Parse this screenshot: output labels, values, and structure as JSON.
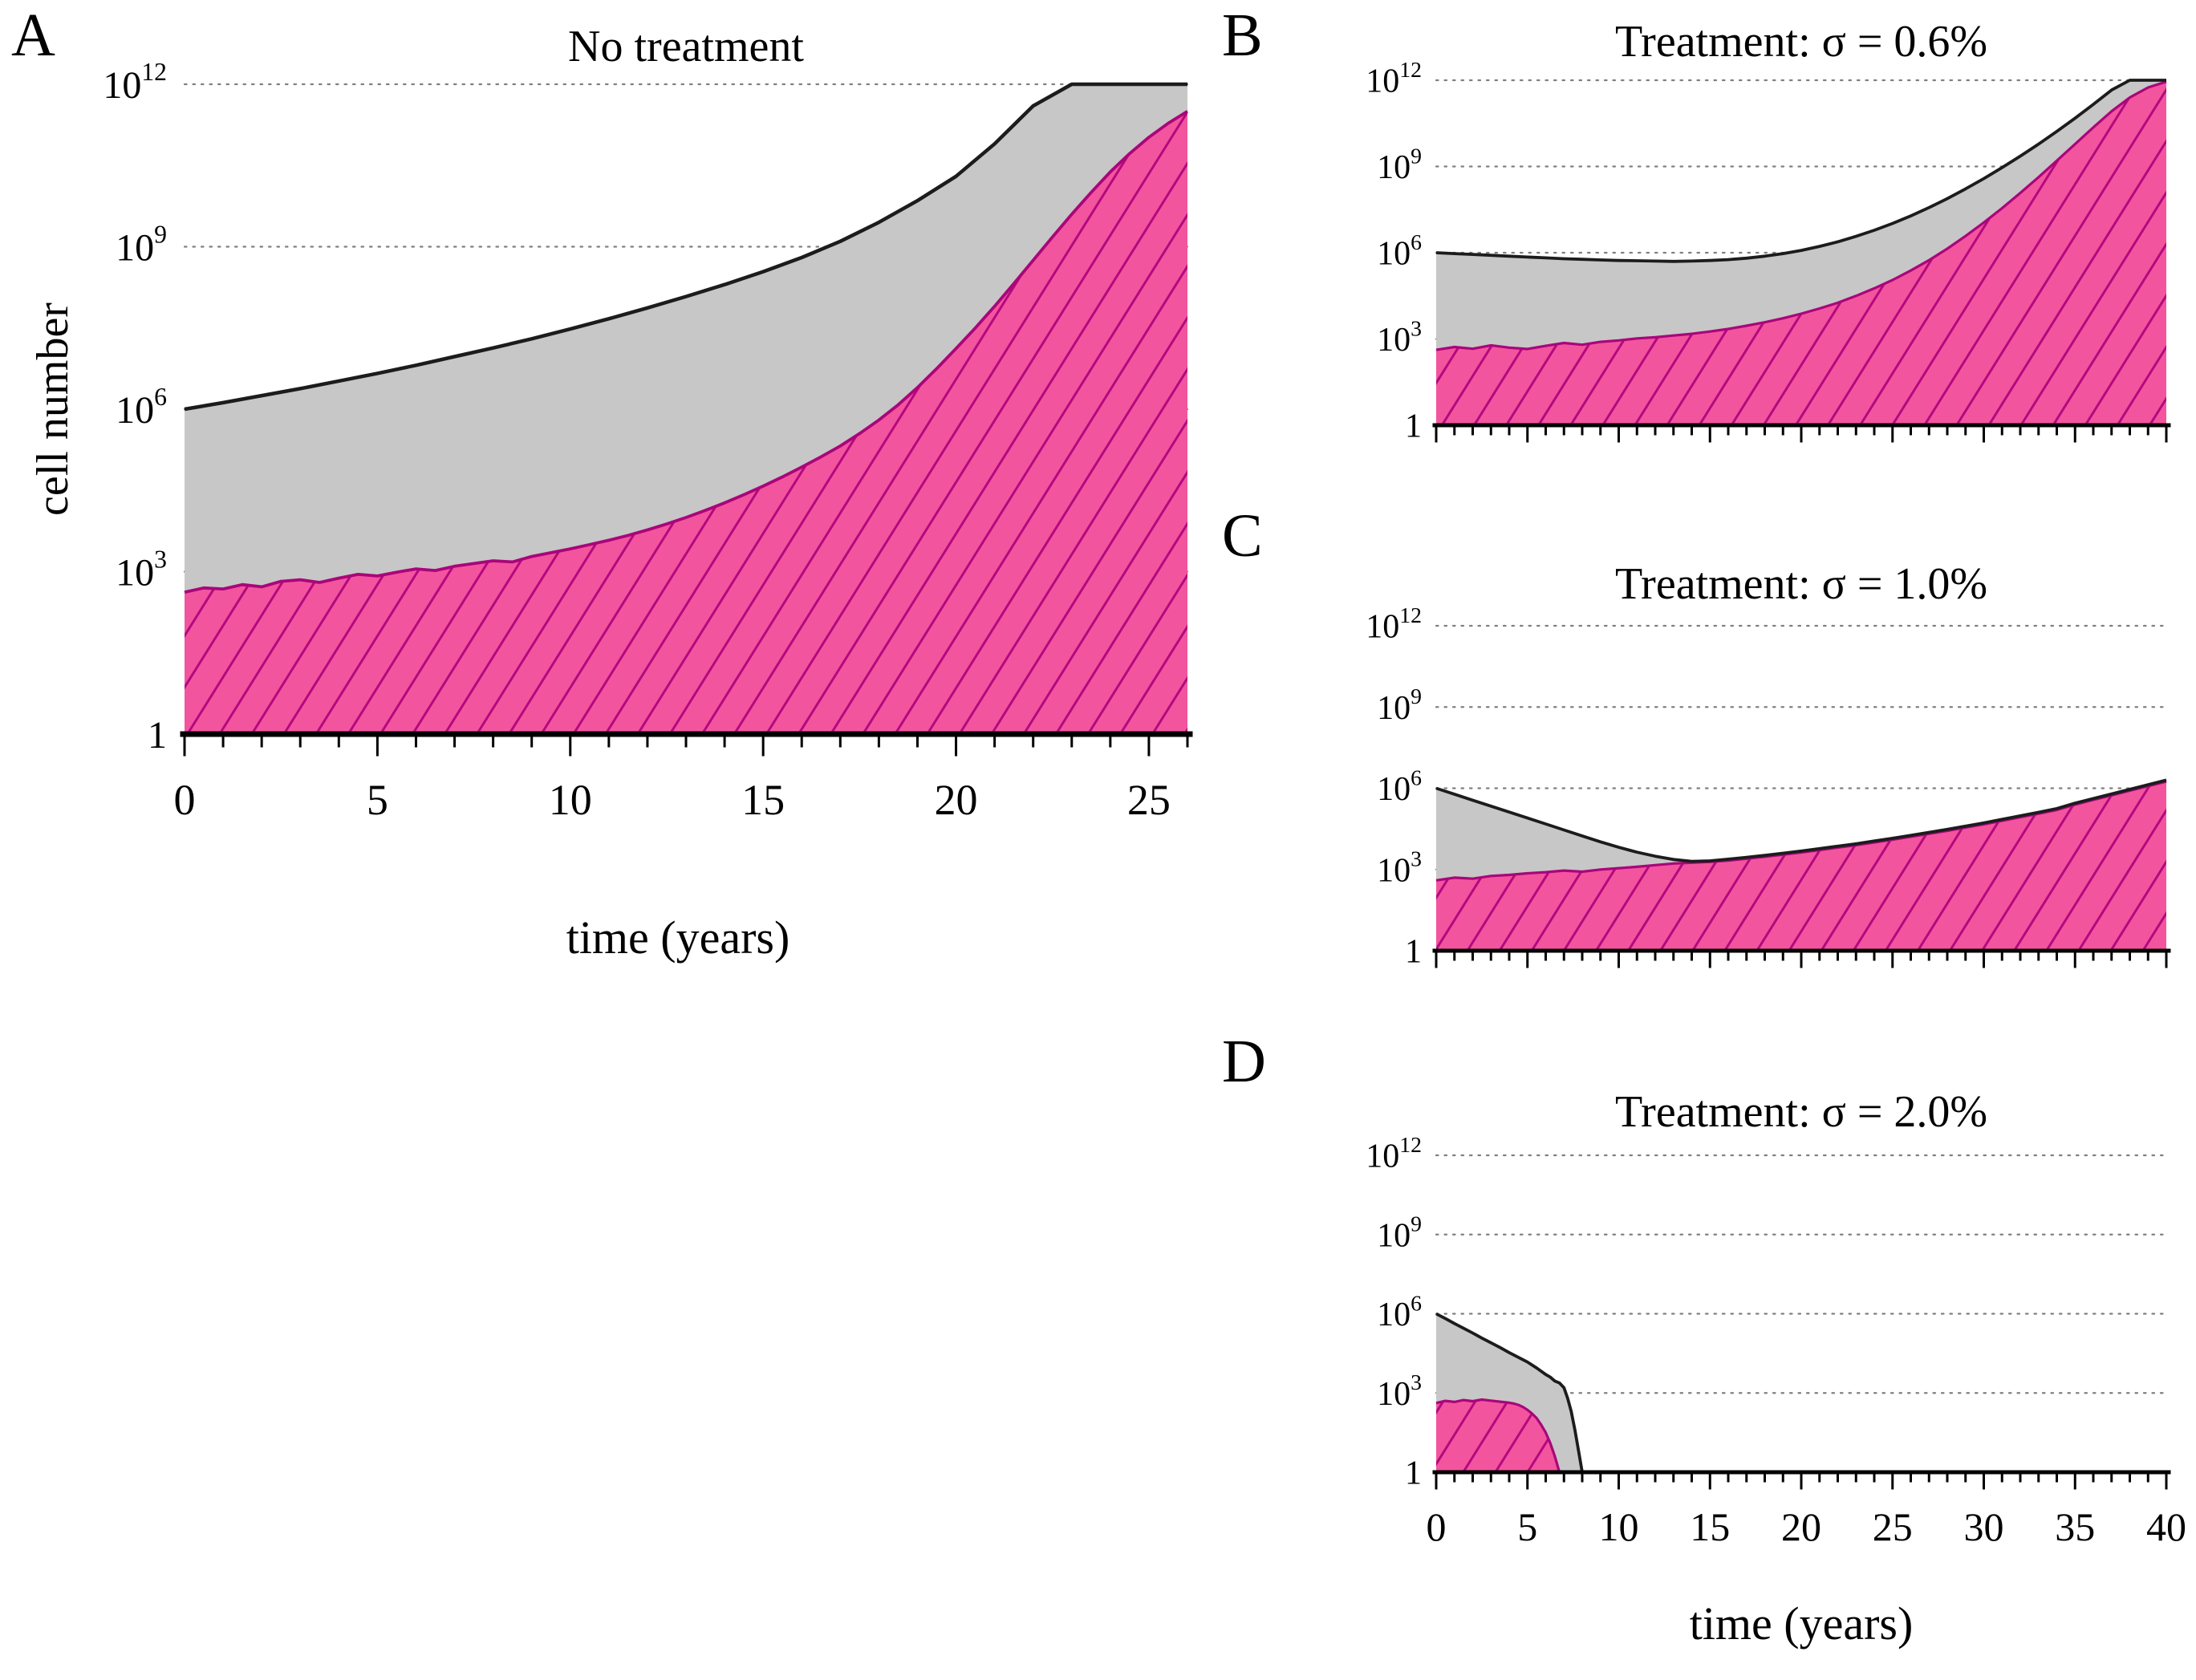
{
  "figure": {
    "panel_labels": [
      "A",
      "B",
      "C",
      "D"
    ]
  },
  "colors": {
    "total_fill": "#c7c7c7",
    "total_stroke": "#1c1c1c",
    "resistant_fill": "#f2559e",
    "resistant_hatch": "#b5087f",
    "resistant_stroke": "#a9067a",
    "grid": "#808080",
    "axis": "#000000"
  },
  "chart_data": [
    {
      "panel": "A",
      "type": "area",
      "title": "No treatment",
      "xlabel": "time (years)",
      "ylabel": "cell number",
      "y_scale": "log10",
      "y_ticks_exp": [
        0,
        3,
        6,
        9,
        12
      ],
      "x_range": [
        0,
        26
      ],
      "x_ticks_major": [
        0,
        5,
        10,
        15,
        20,
        25
      ],
      "x_tick_labels_shown": true,
      "series": [
        {
          "name": "total cells (gray area, black line)",
          "style": "gray-area",
          "x_start": 0,
          "x_step": 1,
          "log10_y": [
            6.0,
            6.12,
            6.25,
            6.38,
            6.52,
            6.66,
            6.81,
            6.97,
            7.13,
            7.3,
            7.48,
            7.67,
            7.87,
            8.08,
            8.3,
            8.54,
            8.8,
            9.1,
            9.45,
            9.85,
            10.3,
            10.9,
            11.6,
            12,
            12,
            12,
            12
          ]
        },
        {
          "name": "resistant cells (pink hatched area, magenta line)",
          "style": "pink-hatched-area",
          "x_start": 0,
          "x_step": 0.5,
          "log10_y": [
            2.62,
            2.7,
            2.68,
            2.76,
            2.72,
            2.82,
            2.85,
            2.8,
            2.88,
            2.95,
            2.92,
            2.99,
            3.05,
            3.02,
            3.1,
            3.15,
            3.2,
            3.18,
            3.28,
            3.35,
            3.42,
            3.5,
            3.58,
            3.67,
            3.77,
            3.88,
            4.0,
            4.13,
            4.27,
            4.42,
            4.58,
            4.75,
            4.93,
            5.12,
            5.32,
            5.55,
            5.8,
            6.08,
            6.4,
            6.75,
            7.12,
            7.5,
            7.9,
            8.32,
            8.75,
            9.18,
            9.6,
            10.0,
            10.38,
            10.72,
            11.02,
            11.28,
            11.5
          ]
        }
      ]
    },
    {
      "panel": "B",
      "type": "area",
      "title": "Treatment: σ = 0.6%",
      "xlabel": "",
      "ylabel": "",
      "y_scale": "log10",
      "y_ticks_exp": [
        0,
        3,
        6,
        9,
        12
      ],
      "x_range": [
        0,
        40
      ],
      "x_ticks_major": [
        0,
        5,
        10,
        15,
        20,
        25,
        30,
        35,
        40
      ],
      "x_tick_labels_shown": false,
      "series": [
        {
          "name": "total cells (gray area, black line)",
          "style": "gray-area",
          "x_start": 0,
          "x_step": 1,
          "log10_y": [
            6.0,
            5.97,
            5.94,
            5.91,
            5.88,
            5.85,
            5.82,
            5.79,
            5.77,
            5.75,
            5.73,
            5.72,
            5.71,
            5.7,
            5.71,
            5.73,
            5.76,
            5.81,
            5.88,
            5.97,
            6.08,
            6.22,
            6.38,
            6.57,
            6.78,
            7.02,
            7.28,
            7.57,
            7.88,
            8.22,
            8.58,
            8.96,
            9.36,
            9.78,
            10.22,
            10.68,
            11.16,
            11.66,
            12,
            12,
            12
          ]
        },
        {
          "name": "resistant cells (pink hatched area, magenta line)",
          "style": "pink-hatched-area",
          "x_start": 0,
          "x_step": 1,
          "log10_y": [
            2.62,
            2.72,
            2.66,
            2.78,
            2.7,
            2.65,
            2.76,
            2.86,
            2.8,
            2.9,
            2.95,
            3.02,
            3.06,
            3.12,
            3.18,
            3.26,
            3.35,
            3.46,
            3.58,
            3.72,
            3.88,
            4.06,
            4.26,
            4.5,
            4.76,
            5.05,
            5.38,
            5.74,
            6.14,
            6.58,
            7.05,
            7.55,
            8.08,
            8.63,
            9.2,
            9.78,
            10.36,
            10.92,
            11.4,
            11.75,
            11.95
          ]
        }
      ]
    },
    {
      "panel": "C",
      "type": "area",
      "title": "Treatment: σ = 1.0%",
      "xlabel": "",
      "ylabel": "",
      "y_scale": "log10",
      "y_ticks_exp": [
        0,
        3,
        6,
        9,
        12
      ],
      "x_range": [
        0,
        40
      ],
      "x_ticks_major": [
        0,
        5,
        10,
        15,
        20,
        25,
        30,
        35,
        40
      ],
      "x_tick_labels_shown": false,
      "series": [
        {
          "name": "total cells (gray area, black line)",
          "style": "gray-area",
          "x_start": 0,
          "x_step": 1,
          "log10_y": [
            6.0,
            5.78,
            5.56,
            5.34,
            5.12,
            4.9,
            4.68,
            4.46,
            4.24,
            4.02,
            3.82,
            3.64,
            3.49,
            3.37,
            3.3,
            3.32,
            3.38,
            3.45,
            3.52,
            3.6,
            3.68,
            3.77,
            3.86,
            3.95,
            4.05,
            4.15,
            4.26,
            4.37,
            4.48,
            4.6,
            4.72,
            4.85,
            4.98,
            5.11,
            5.25,
            5.45,
            5.62,
            5.79,
            5.96,
            6.13,
            6.3
          ]
        },
        {
          "name": "resistant cells (pink hatched area, magenta line)",
          "style": "pink-hatched-area",
          "x_start": 0,
          "x_step": 1,
          "log10_y": [
            2.6,
            2.7,
            2.66,
            2.76,
            2.8,
            2.86,
            2.9,
            2.96,
            2.92,
            3.0,
            3.05,
            3.1,
            3.16,
            3.22,
            3.25,
            3.28,
            3.33,
            3.4,
            3.47,
            3.55,
            3.63,
            3.72,
            3.81,
            3.9,
            4.0,
            4.1,
            4.21,
            4.32,
            4.43,
            4.55,
            4.67,
            4.8,
            4.93,
            5.06,
            5.2,
            5.4,
            5.57,
            5.74,
            5.91,
            6.08,
            6.25
          ]
        }
      ]
    },
    {
      "panel": "D",
      "type": "area",
      "title": "Treatment: σ = 2.0%",
      "xlabel": "time (years)",
      "ylabel": "",
      "y_scale": "log10",
      "y_ticks_exp": [
        0,
        3,
        6,
        9,
        12
      ],
      "x_range": [
        0,
        40
      ],
      "x_ticks_major": [
        0,
        5,
        10,
        15,
        20,
        25,
        30,
        35,
        40
      ],
      "x_tick_labels_shown": true,
      "series": [
        {
          "name": "total cells (gray area, black line), goes extinct near year 8",
          "style": "gray-area",
          "x": [
            0,
            0.5,
            1,
            1.5,
            2,
            2.5,
            3,
            3.5,
            4,
            4.5,
            5,
            5.5,
            6,
            6.25,
            6.5,
            6.75,
            7,
            7.2,
            7.4,
            7.6,
            7.8,
            8,
            40
          ],
          "log10_y": [
            6.0,
            5.82,
            5.63,
            5.45,
            5.27,
            5.08,
            4.9,
            4.72,
            4.53,
            4.35,
            4.17,
            3.95,
            3.7,
            3.6,
            3.45,
            3.38,
            3.2,
            2.8,
            2.3,
            1.6,
            0.8,
            0,
            0
          ]
        },
        {
          "name": "resistant cells (pink hatched area, magenta line), goes extinct near year 7",
          "style": "pink-hatched-area",
          "x": [
            0,
            0.5,
            1,
            1.5,
            2,
            2.5,
            3,
            3.5,
            4,
            4.25,
            4.5,
            4.75,
            5,
            5.25,
            5.5,
            5.75,
            6,
            6.25,
            6.5,
            6.75
          ],
          "log10_y": [
            2.62,
            2.7,
            2.66,
            2.73,
            2.69,
            2.75,
            2.71,
            2.67,
            2.63,
            2.6,
            2.55,
            2.47,
            2.36,
            2.22,
            2.05,
            1.8,
            1.5,
            1.1,
            0.6,
            0
          ]
        }
      ]
    }
  ]
}
